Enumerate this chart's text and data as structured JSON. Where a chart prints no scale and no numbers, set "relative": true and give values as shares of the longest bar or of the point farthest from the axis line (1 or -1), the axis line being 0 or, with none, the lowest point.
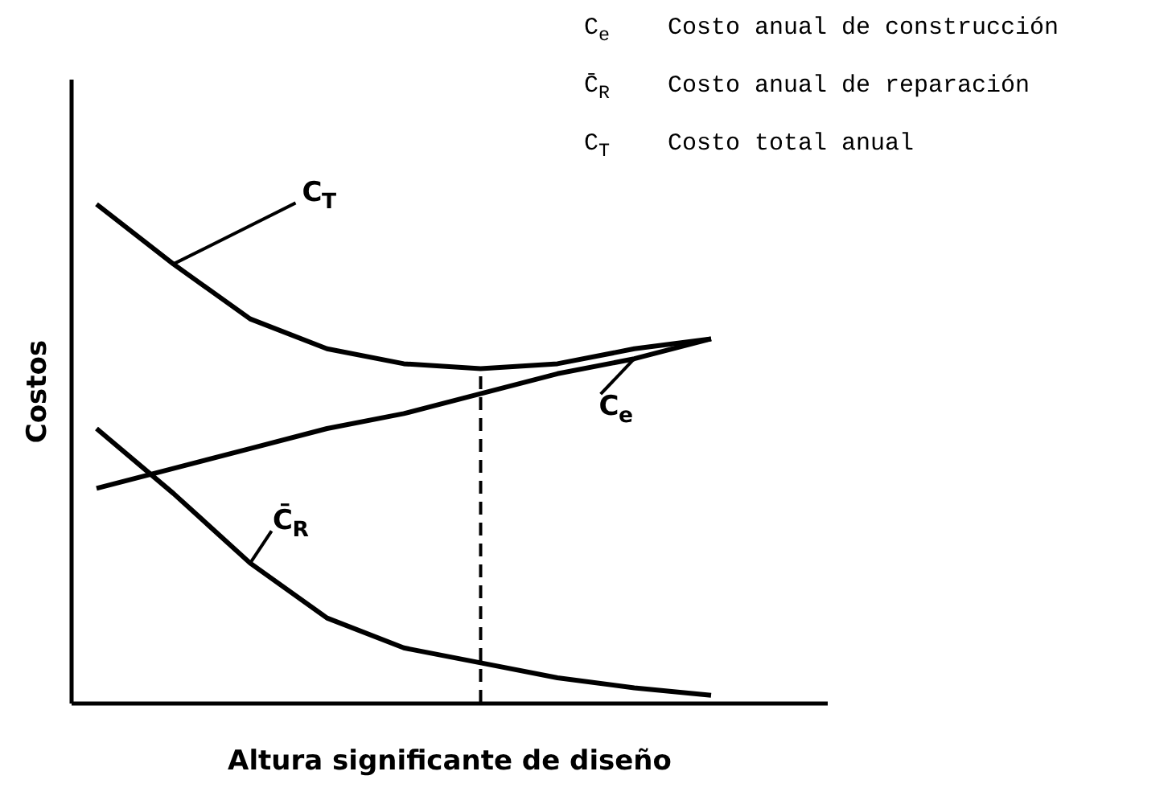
{
  "chart_data": {
    "type": "line",
    "relative": true,
    "xlabel": "Altura significante de diseño",
    "ylabel": "Costos",
    "categories": [
      null,
      null,
      null,
      null,
      null,
      null,
      null,
      null,
      null
    ],
    "series": [
      {
        "name": "C$_{T}$",
        "color": "#000000",
        "values": [
          1,
          0.88,
          0.77,
          0.71,
          0.68,
          0.67,
          0.68,
          0.71,
          0.73
        ]
      },
      {
        "name": "C̄$_{R}$",
        "color": "#000000",
        "values": [
          0.55,
          0.42,
          0.28,
          0.17,
          0.11,
          0.08,
          0.05,
          0.03,
          0.015
        ]
      },
      {
        "name": "C$_{e}$",
        "color": "#000000",
        "values": [
          0.43,
          0.47,
          0.51,
          0.55,
          0.58,
          0.62,
          0.66,
          0.69,
          0.73
        ]
      }
    ],
    "annotations": [
      "C$_{e}$  Costo anual de construcción",
      "C̄$_{R}$  Costo anual de reparación",
      "C$_{T}$  Costo total anual"
    ],
    "line_style": "solid"
  }
}
